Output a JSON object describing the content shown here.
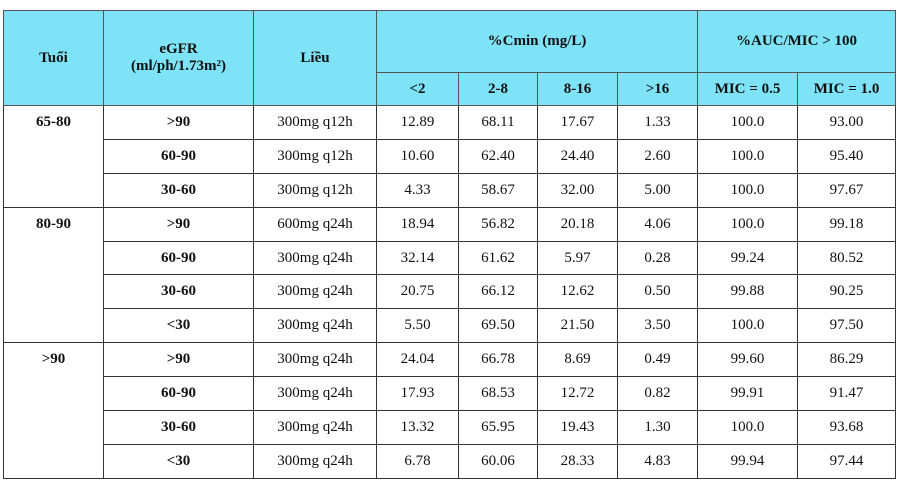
{
  "header": {
    "age": "Tuổi",
    "egfr": [
      "eGFR",
      "(ml/ph/1.73m²)"
    ],
    "dose": "Liều",
    "cmin": "%Cmin (mg/L)",
    "auc": "%AUC/MIC > 100",
    "cmin_cols": [
      "<2",
      "2-8",
      "8-16",
      ">16"
    ],
    "auc_cols": [
      "MIC = 0.5",
      "MIC = 1.0"
    ]
  },
  "groups": [
    {
      "age": "65-80",
      "rows": [
        [
          ">90",
          "300mg q12h",
          "12.89",
          "68.11",
          "17.67",
          "1.33",
          "100.0",
          "93.00"
        ],
        [
          "60-90",
          "300mg q12h",
          "10.60",
          "62.40",
          "24.40",
          "2.60",
          "100.0",
          "95.40"
        ],
        [
          "30-60",
          "300mg q12h",
          "4.33",
          "58.67",
          "32.00",
          "5.00",
          "100.0",
          "97.67"
        ]
      ]
    },
    {
      "age": "80-90",
      "rows": [
        [
          ">90",
          "600mg q24h",
          "18.94",
          "56.82",
          "20.18",
          "4.06",
          "100.0",
          "99.18"
        ],
        [
          "60-90",
          "300mg q24h",
          "32.14",
          "61.62",
          "5.97",
          "0.28",
          "99.24",
          "80.52"
        ],
        [
          "30-60",
          "300mg q24h",
          "20.75",
          "66.12",
          "12.62",
          "0.50",
          "99.88",
          "90.25"
        ],
        [
          "<30",
          "300mg q24h",
          "5.50",
          "69.50",
          "21.50",
          "3.50",
          "100.0",
          "97.50"
        ]
      ]
    },
    {
      "age": ">90",
      "rows": [
        [
          ">90",
          "300mg q24h",
          "24.04",
          "66.78",
          "8.69",
          "0.49",
          "99.60",
          "86.29"
        ],
        [
          "60-90",
          "300mg q24h",
          "17.93",
          "68.53",
          "12.72",
          "0.82",
          "99.91",
          "91.47"
        ],
        [
          "30-60",
          "300mg q24h",
          "13.32",
          "65.95",
          "19.43",
          "1.30",
          "100.0",
          "93.68"
        ],
        [
          "<30",
          "300mg q24h",
          "6.78",
          "60.06",
          "28.33",
          "4.83",
          "99.94",
          "97.44"
        ]
      ]
    }
  ]
}
